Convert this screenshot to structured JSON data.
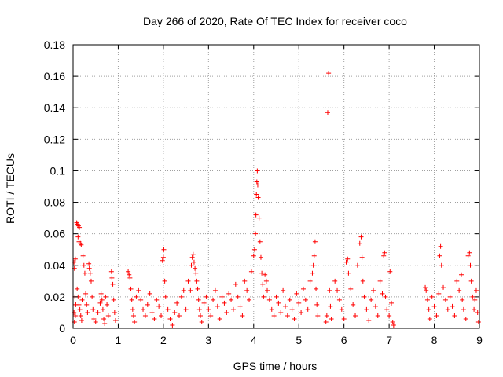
{
  "chart_data": {
    "type": "scatter",
    "title": "Day 266 of 2020, Rate Of TEC Index for receiver coco",
    "xlabel": "GPS time / hours",
    "ylabel": "ROTI / TECUs",
    "xlim": [
      0,
      9
    ],
    "ylim": [
      0,
      0.18
    ],
    "x_ticks": [
      0,
      1,
      2,
      3,
      4,
      5,
      6,
      7,
      8,
      9
    ],
    "y_ticks": [
      0,
      0.02,
      0.04,
      0.06,
      0.08,
      0.1,
      0.12,
      0.14,
      0.16,
      0.18
    ],
    "x_tick_labels": [
      "0",
      "1",
      "2",
      "3",
      "4",
      "5",
      "6",
      "7",
      "8",
      "9"
    ],
    "y_tick_labels": [
      "0",
      "0.02",
      "0.04",
      "0.06",
      "0.08",
      "0.1",
      "0.12",
      "0.14",
      "0.16",
      "0.18"
    ],
    "grid": true,
    "marker": "plus",
    "color": "#ff0000",
    "series": [
      {
        "points": [
          [
            0.02,
            0.042
          ],
          [
            0.03,
            0.038
          ],
          [
            0.05,
            0.044
          ],
          [
            0.04,
            0.02
          ],
          [
            0.06,
            0.015
          ],
          [
            0.02,
            0.01
          ],
          [
            0.03,
            0.004
          ],
          [
            0.05,
            0.008
          ],
          [
            0.08,
            0.067
          ],
          [
            0.1,
            0.066
          ],
          [
            0.12,
            0.065
          ],
          [
            0.14,
            0.064
          ],
          [
            0.11,
            0.058
          ],
          [
            0.13,
            0.055
          ],
          [
            0.16,
            0.054
          ],
          [
            0.18,
            0.053
          ],
          [
            0.09,
            0.025
          ],
          [
            0.11,
            0.02
          ],
          [
            0.13,
            0.015
          ],
          [
            0.15,
            0.012
          ],
          [
            0.17,
            0.008
          ],
          [
            0.19,
            0.005
          ],
          [
            0.2,
            0.018
          ],
          [
            0.22,
            0.046
          ],
          [
            0.24,
            0.04
          ],
          [
            0.26,
            0.035
          ],
          [
            0.28,
            0.022
          ],
          [
            0.3,
            0.015
          ],
          [
            0.32,
            0.01
          ],
          [
            0.35,
            0.041
          ],
          [
            0.36,
            0.038
          ],
          [
            0.38,
            0.035
          ],
          [
            0.4,
            0.03
          ],
          [
            0.42,
            0.02
          ],
          [
            0.44,
            0.012
          ],
          [
            0.46,
            0.006
          ],
          [
            0.5,
            0.004
          ],
          [
            0.55,
            0.01
          ],
          [
            0.6,
            0.016
          ],
          [
            0.62,
            0.022
          ],
          [
            0.64,
            0.018
          ],
          [
            0.66,
            0.012
          ],
          [
            0.68,
            0.006
          ],
          [
            0.7,
            0.003
          ],
          [
            0.72,
            0.02
          ],
          [
            0.75,
            0.015
          ],
          [
            0.78,
            0.008
          ],
          [
            0.85,
            0.036
          ],
          [
            0.86,
            0.032
          ],
          [
            0.88,
            0.028
          ],
          [
            0.9,
            0.018
          ],
          [
            0.92,
            0.01
          ],
          [
            0.94,
            0.005
          ],
          [
            1.22,
            0.036
          ],
          [
            1.24,
            0.034
          ],
          [
            1.26,
            0.032
          ],
          [
            1.28,
            0.025
          ],
          [
            1.3,
            0.018
          ],
          [
            1.32,
            0.012
          ],
          [
            1.34,
            0.008
          ],
          [
            1.36,
            0.004
          ],
          [
            1.4,
            0.02
          ],
          [
            1.45,
            0.024
          ],
          [
            1.5,
            0.018
          ],
          [
            1.55,
            0.012
          ],
          [
            1.6,
            0.008
          ],
          [
            1.65,
            0.015
          ],
          [
            1.7,
            0.022
          ],
          [
            1.75,
            0.01
          ],
          [
            1.8,
            0.006
          ],
          [
            1.85,
            0.018
          ],
          [
            1.9,
            0.014
          ],
          [
            1.95,
            0.008
          ],
          [
            1.98,
            0.043
          ],
          [
            2.0,
            0.045
          ],
          [
            2.01,
            0.05
          ],
          [
            2.03,
            0.03
          ],
          [
            2.05,
            0.02
          ],
          [
            2.1,
            0.012
          ],
          [
            2.15,
            0.006
          ],
          [
            2.2,
            0.002
          ],
          [
            2.25,
            0.01
          ],
          [
            2.3,
            0.016
          ],
          [
            2.35,
            0.008
          ],
          [
            2.4,
            0.02
          ],
          [
            2.45,
            0.024
          ],
          [
            2.5,
            0.012
          ],
          [
            2.55,
            0.03
          ],
          [
            2.6,
            0.024
          ],
          [
            2.62,
            0.04
          ],
          [
            2.64,
            0.045
          ],
          [
            2.66,
            0.047
          ],
          [
            2.68,
            0.042
          ],
          [
            2.7,
            0.038
          ],
          [
            2.72,
            0.035
          ],
          [
            2.74,
            0.03
          ],
          [
            2.76,
            0.025
          ],
          [
            2.78,
            0.018
          ],
          [
            2.8,
            0.012
          ],
          [
            2.82,
            0.008
          ],
          [
            2.85,
            0.004
          ],
          [
            2.9,
            0.016
          ],
          [
            2.95,
            0.02
          ],
          [
            3.0,
            0.012
          ],
          [
            3.05,
            0.008
          ],
          [
            3.1,
            0.018
          ],
          [
            3.15,
            0.024
          ],
          [
            3.2,
            0.014
          ],
          [
            3.25,
            0.006
          ],
          [
            3.3,
            0.02
          ],
          [
            3.35,
            0.016
          ],
          [
            3.4,
            0.01
          ],
          [
            3.45,
            0.022
          ],
          [
            3.5,
            0.018
          ],
          [
            3.55,
            0.012
          ],
          [
            3.6,
            0.028
          ],
          [
            3.65,
            0.02
          ],
          [
            3.7,
            0.014
          ],
          [
            3.75,
            0.008
          ],
          [
            3.8,
            0.03
          ],
          [
            3.85,
            0.024
          ],
          [
            3.9,
            0.018
          ],
          [
            3.95,
            0.036
          ],
          [
            4.0,
            0.046
          ],
          [
            4.02,
            0.05
          ],
          [
            4.04,
            0.06
          ],
          [
            4.05,
            0.072
          ],
          [
            4.06,
            0.085
          ],
          [
            4.07,
            0.093
          ],
          [
            4.08,
            0.1
          ],
          [
            4.09,
            0.091
          ],
          [
            4.1,
            0.083
          ],
          [
            4.12,
            0.07
          ],
          [
            4.14,
            0.055
          ],
          [
            4.16,
            0.045
          ],
          [
            4.18,
            0.035
          ],
          [
            4.2,
            0.028
          ],
          [
            4.22,
            0.02
          ],
          [
            4.25,
            0.034
          ],
          [
            4.28,
            0.03
          ],
          [
            4.3,
            0.024
          ],
          [
            4.35,
            0.018
          ],
          [
            4.4,
            0.012
          ],
          [
            4.45,
            0.008
          ],
          [
            4.5,
            0.02
          ],
          [
            4.55,
            0.016
          ],
          [
            4.6,
            0.01
          ],
          [
            4.65,
            0.024
          ],
          [
            4.7,
            0.014
          ],
          [
            4.75,
            0.008
          ],
          [
            4.8,
            0.018
          ],
          [
            4.85,
            0.012
          ],
          [
            4.9,
            0.006
          ],
          [
            4.95,
            0.022
          ],
          [
            5.0,
            0.016
          ],
          [
            5.05,
            0.01
          ],
          [
            5.1,
            0.025
          ],
          [
            5.15,
            0.018
          ],
          [
            5.2,
            0.012
          ],
          [
            5.25,
            0.03
          ],
          [
            5.3,
            0.035
          ],
          [
            5.32,
            0.04
          ],
          [
            5.34,
            0.046
          ],
          [
            5.36,
            0.055
          ],
          [
            5.38,
            0.025
          ],
          [
            5.4,
            0.015
          ],
          [
            5.42,
            0.008
          ],
          [
            5.6,
            0.004
          ],
          [
            5.62,
            0.008
          ],
          [
            5.64,
            0.137
          ],
          [
            5.66,
            0.162
          ],
          [
            5.68,
            0.024
          ],
          [
            5.7,
            0.014
          ],
          [
            5.72,
            0.006
          ],
          [
            5.8,
            0.03
          ],
          [
            5.85,
            0.024
          ],
          [
            5.9,
            0.018
          ],
          [
            5.95,
            0.012
          ],
          [
            6.0,
            0.006
          ],
          [
            6.05,
            0.042
          ],
          [
            6.08,
            0.044
          ],
          [
            6.1,
            0.035
          ],
          [
            6.15,
            0.025
          ],
          [
            6.2,
            0.015
          ],
          [
            6.25,
            0.008
          ],
          [
            6.3,
            0.04
          ],
          [
            6.35,
            0.054
          ],
          [
            6.38,
            0.058
          ],
          [
            6.4,
            0.045
          ],
          [
            6.42,
            0.03
          ],
          [
            6.45,
            0.02
          ],
          [
            6.5,
            0.012
          ],
          [
            6.55,
            0.005
          ],
          [
            6.6,
            0.018
          ],
          [
            6.65,
            0.024
          ],
          [
            6.7,
            0.014
          ],
          [
            6.75,
            0.008
          ],
          [
            6.8,
            0.03
          ],
          [
            6.85,
            0.022
          ],
          [
            6.88,
            0.046
          ],
          [
            6.9,
            0.048
          ],
          [
            6.92,
            0.02
          ],
          [
            6.95,
            0.012
          ],
          [
            7.0,
            0.008
          ],
          [
            7.02,
            0.036
          ],
          [
            7.05,
            0.016
          ],
          [
            7.08,
            0.004
          ],
          [
            7.1,
            0.002
          ],
          [
            7.8,
            0.026
          ],
          [
            7.82,
            0.024
          ],
          [
            7.85,
            0.018
          ],
          [
            7.88,
            0.012
          ],
          [
            7.9,
            0.006
          ],
          [
            7.95,
            0.02
          ],
          [
            8.0,
            0.014
          ],
          [
            8.05,
            0.008
          ],
          [
            8.1,
            0.022
          ],
          [
            8.12,
            0.046
          ],
          [
            8.14,
            0.052
          ],
          [
            8.16,
            0.04
          ],
          [
            8.2,
            0.026
          ],
          [
            8.25,
            0.018
          ],
          [
            8.3,
            0.012
          ],
          [
            8.35,
            0.02
          ],
          [
            8.4,
            0.014
          ],
          [
            8.45,
            0.008
          ],
          [
            8.5,
            0.03
          ],
          [
            8.55,
            0.024
          ],
          [
            8.6,
            0.034
          ],
          [
            8.62,
            0.018
          ],
          [
            8.65,
            0.012
          ],
          [
            8.7,
            0.006
          ],
          [
            8.75,
            0.046
          ],
          [
            8.78,
            0.048
          ],
          [
            8.8,
            0.04
          ],
          [
            8.82,
            0.03
          ],
          [
            8.85,
            0.02
          ],
          [
            8.88,
            0.012
          ],
          [
            8.9,
            0.018
          ],
          [
            8.93,
            0.024
          ],
          [
            8.96,
            0.01
          ],
          [
            8.98,
            0.004
          ]
        ]
      }
    ]
  }
}
